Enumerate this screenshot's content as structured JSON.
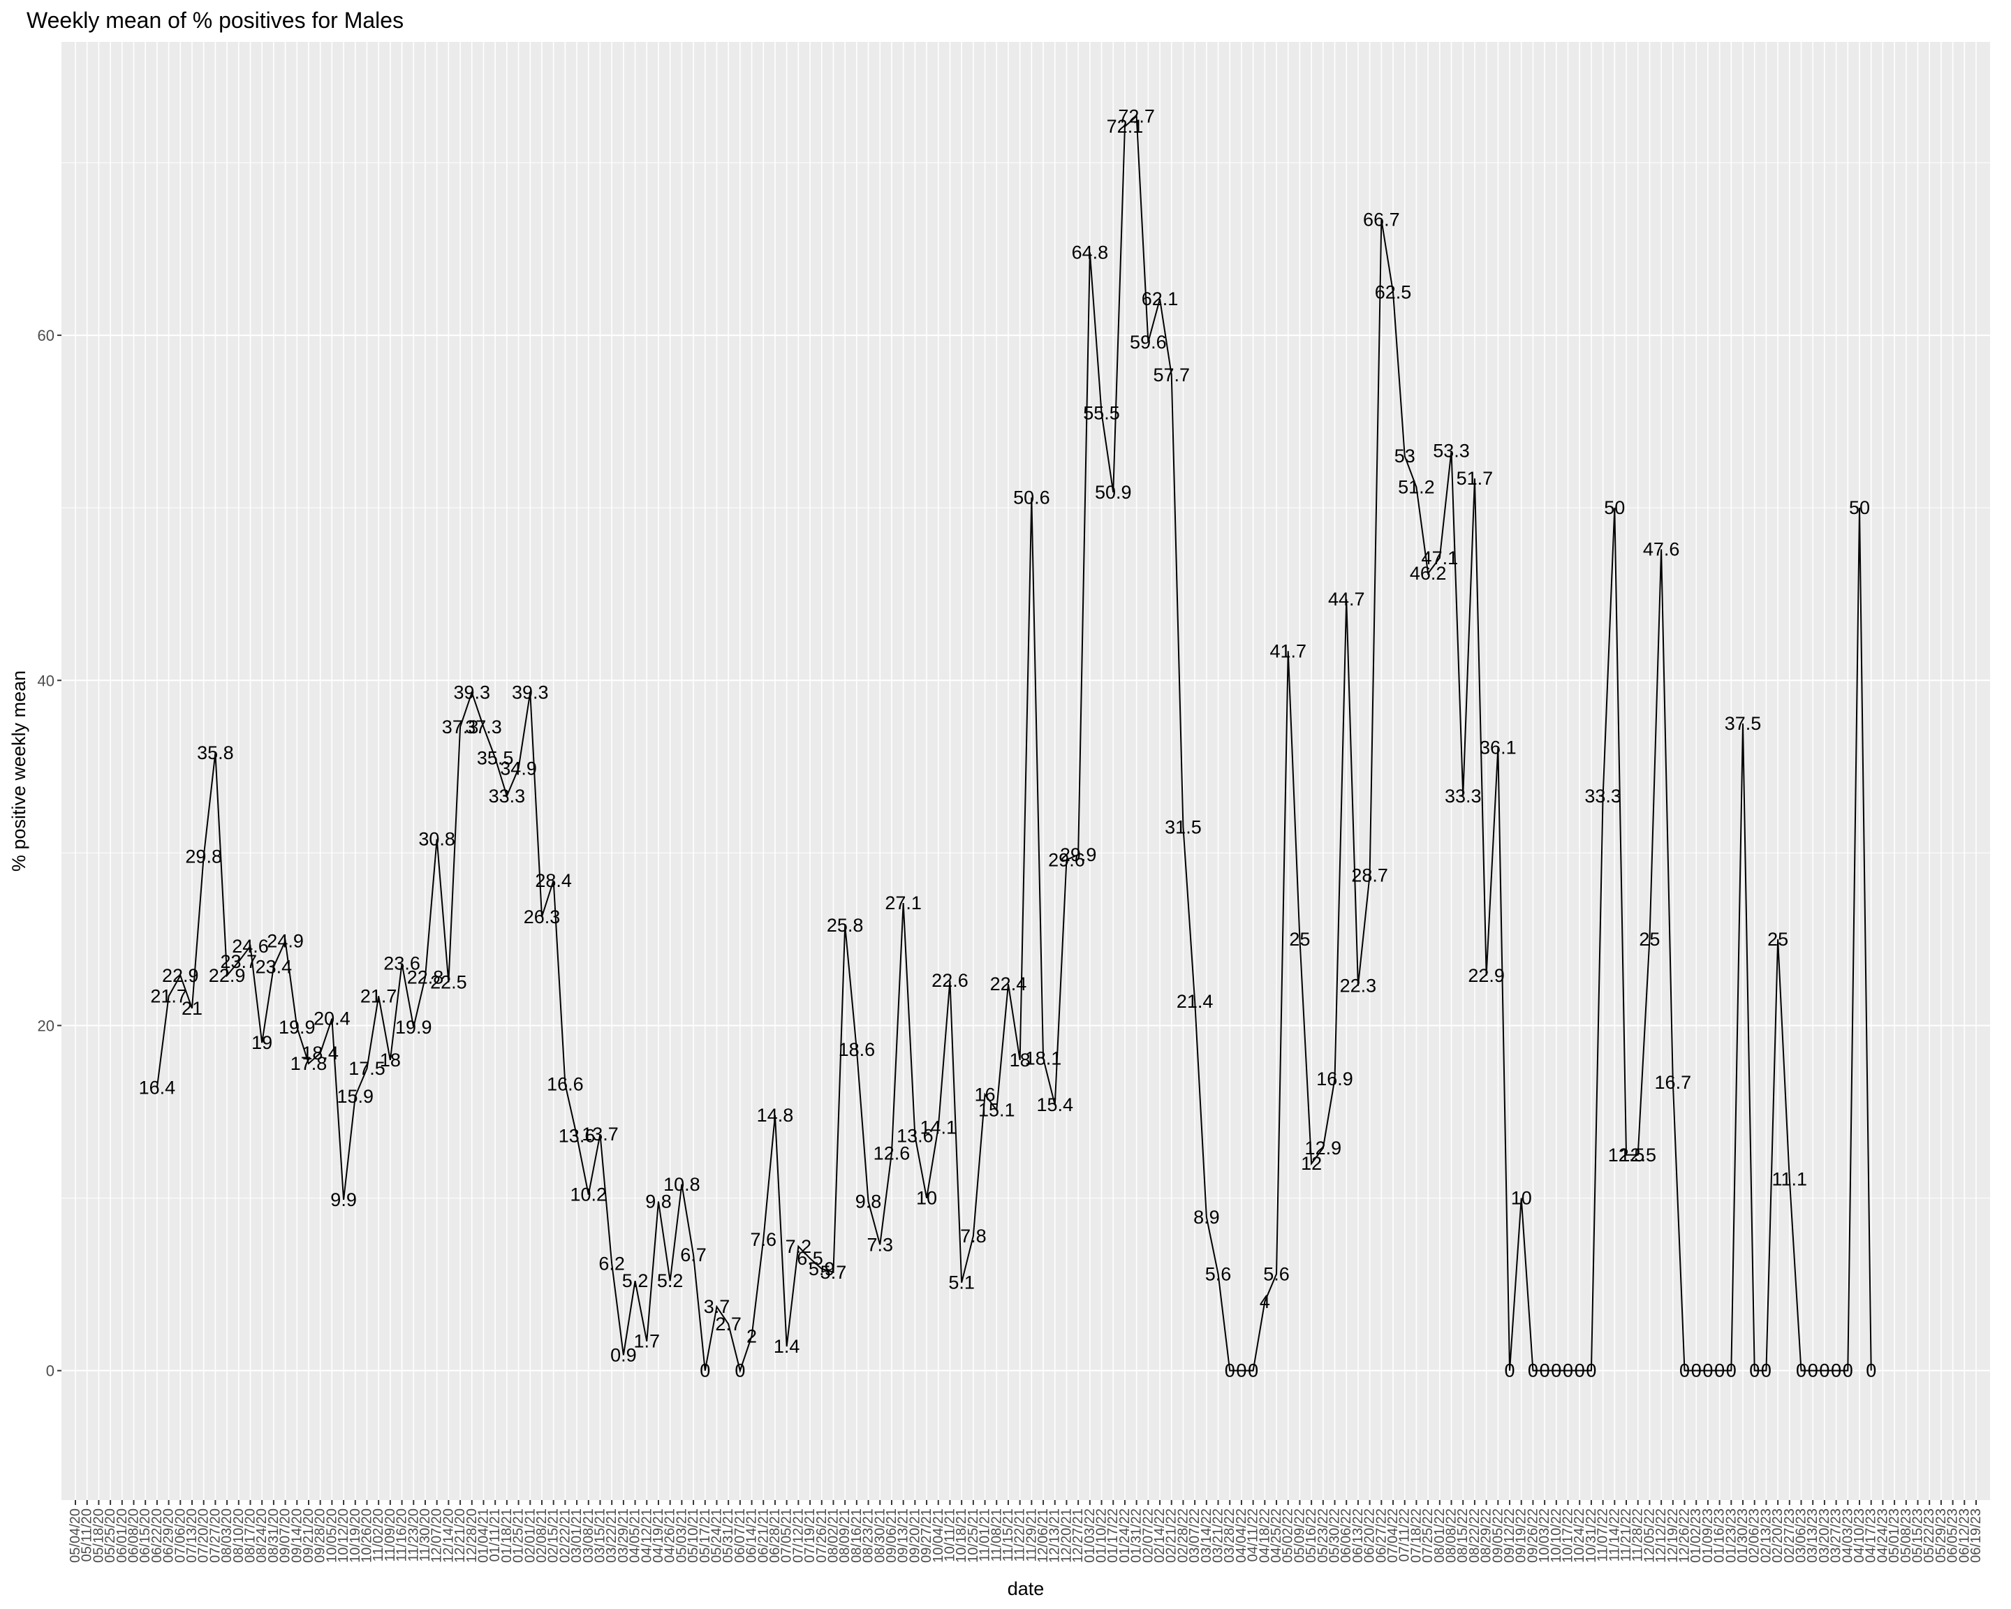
{
  "chart_data": {
    "type": "line",
    "title": "Weekly mean of % positives for Males",
    "xlabel": "date",
    "ylabel": "% positive weekly mean",
    "ylim": [
      -7.5,
      77
    ],
    "yticks": [
      0,
      20,
      40,
      60
    ],
    "grid": true,
    "x_tick_labels": [
      "05/04/20",
      "05/11/20",
      "05/18/20",
      "05/25/20",
      "06/01/20",
      "06/08/20",
      "06/15/20",
      "06/22/20",
      "06/29/20",
      "07/06/20",
      "07/13/20",
      "07/20/20",
      "07/27/20",
      "08/03/20",
      "08/10/20",
      "08/17/20",
      "08/24/20",
      "08/31/20",
      "09/07/20",
      "09/14/20",
      "09/21/20",
      "09/28/20",
      "10/05/20",
      "10/12/20",
      "10/19/20",
      "10/26/20",
      "11/02/20",
      "11/09/20",
      "11/16/20",
      "11/23/20",
      "11/30/20",
      "12/07/20",
      "12/14/20",
      "12/21/20",
      "12/28/20",
      "01/04/21",
      "01/11/21",
      "01/18/21",
      "01/25/21",
      "02/01/21",
      "02/08/21",
      "02/15/21",
      "02/22/21",
      "03/01/21",
      "03/08/21",
      "03/15/21",
      "03/22/21",
      "03/29/21",
      "04/05/21",
      "04/12/21",
      "04/19/21",
      "04/26/21",
      "05/03/21",
      "05/10/21",
      "05/17/21",
      "05/24/21",
      "05/31/21",
      "06/07/21",
      "06/14/21",
      "06/21/21",
      "06/28/21",
      "07/05/21",
      "07/12/21",
      "07/19/21",
      "07/26/21",
      "08/02/21",
      "08/09/21",
      "08/16/21",
      "08/23/21",
      "08/30/21",
      "09/06/21",
      "09/13/21",
      "09/20/21",
      "09/27/21",
      "10/04/21",
      "10/11/21",
      "10/18/21",
      "10/25/21",
      "11/01/21",
      "11/08/21",
      "11/15/21",
      "11/22/21",
      "11/29/21",
      "12/06/21",
      "12/13/21",
      "12/20/21",
      "12/27/21",
      "01/03/22",
      "01/10/22",
      "01/17/22",
      "01/24/22",
      "01/31/22",
      "02/07/22",
      "02/14/22",
      "02/21/22",
      "02/28/22",
      "03/07/22",
      "03/14/22",
      "03/21/22",
      "03/28/22",
      "04/04/22",
      "04/11/22",
      "04/18/22",
      "04/25/22",
      "05/02/22",
      "05/09/22",
      "05/16/22",
      "05/23/22",
      "05/30/22",
      "06/06/22",
      "06/13/22",
      "06/20/22",
      "06/27/22",
      "07/04/22",
      "07/11/22",
      "07/18/22",
      "07/25/22",
      "08/01/22",
      "08/08/22",
      "08/15/22",
      "08/22/22",
      "08/29/22",
      "09/05/22",
      "09/12/22",
      "09/19/22",
      "09/26/22",
      "10/03/22",
      "10/10/22",
      "10/17/22",
      "10/24/22",
      "10/31/22",
      "11/07/22",
      "11/14/22",
      "11/21/22",
      "11/28/22",
      "12/05/22",
      "12/12/22",
      "12/19/22",
      "12/26/22",
      "01/02/23",
      "01/09/23",
      "01/16/23",
      "01/23/23",
      "01/30/23",
      "02/06/23",
      "02/13/23",
      "02/20/23",
      "02/27/23",
      "03/06/23",
      "03/13/23",
      "03/20/23",
      "03/27/23",
      "04/03/23",
      "04/10/23",
      "04/17/23",
      "04/24/23",
      "05/01/23",
      "05/08/23",
      "05/15/23",
      "05/22/23",
      "05/29/23",
      "06/05/23",
      "06/12/23",
      "06/19/23"
    ],
    "series": [
      {
        "values": [
          null,
          null,
          null,
          null,
          null,
          null,
          null,
          16.4,
          21.7,
          22.9,
          21,
          29.8,
          35.8,
          22.9,
          23.7,
          24.6,
          19,
          23.4,
          24.9,
          19.9,
          17.8,
          18.4,
          20.4,
          9.9,
          15.9,
          17.5,
          21.7,
          18,
          23.6,
          19.9,
          22.8,
          30.8,
          22.5,
          37.3,
          39.3,
          37.3,
          35.5,
          33.3,
          34.9,
          39.3,
          26.3,
          28.4,
          16.6,
          13.6,
          10.2,
          13.7,
          6.2,
          0.9,
          5.2,
          1.7,
          9.8,
          5.2,
          10.8,
          6.7,
          0,
          3.7,
          2.7,
          0,
          2,
          7.6,
          14.8,
          1.4,
          7.2,
          6.5,
          5.9,
          5.7,
          25.8,
          18.6,
          9.8,
          7.3,
          12.6,
          27.1,
          13.6,
          10,
          14.1,
          22.6,
          5.1,
          7.8,
          16,
          15.1,
          22.4,
          18,
          50.6,
          18.1,
          15.4,
          29.6,
          29.9,
          64.8,
          55.5,
          50.9,
          72.1,
          72.7,
          59.6,
          62.1,
          57.7,
          31.5,
          21.4,
          8.9,
          5.6,
          0,
          0,
          0,
          4,
          5.6,
          41.7,
          25,
          12,
          12.9,
          16.9,
          44.7,
          22.3,
          28.7,
          66.7,
          62.5,
          53,
          51.2,
          46.2,
          47.1,
          53.3,
          33.3,
          51.7,
          22.9,
          36.1,
          0,
          10,
          0,
          0,
          0,
          0,
          0,
          0,
          33.3,
          50,
          12.5,
          12.5,
          25,
          47.6,
          16.7,
          0,
          0,
          0,
          0,
          0,
          37.5,
          0,
          0,
          25,
          11.1,
          0,
          0,
          0,
          0,
          0,
          50,
          0,
          null,
          null,
          null,
          null,
          null,
          null,
          null,
          null,
          null,
          null
        ],
        "point_labels": [
          null,
          null,
          null,
          null,
          null,
          null,
          null,
          "16.4",
          "21.7",
          "22.9",
          "21",
          "29.8",
          "35.8",
          "22.9",
          "23.7",
          "24.6",
          "19",
          "23.4",
          "24.9",
          "19.9",
          "17.8",
          "18.4",
          "20.4",
          "9.9",
          "15.9",
          "17.5",
          "21.7",
          "18",
          "23.6",
          "19.9",
          "22.8",
          "30.8",
          "22.5",
          "37.3",
          "39.3",
          "37.3",
          "35.5",
          "33.3",
          "34.9",
          "39.3",
          "26.3",
          "28.4",
          "16.6",
          "13.6",
          "10.2",
          "13.7",
          "6.2",
          "0.9",
          "5.2",
          "1.7",
          "9.8",
          "5.2",
          "10.8",
          "6.7",
          "0",
          "3.7",
          "2.7",
          "0",
          "2",
          "7.6",
          "14.8",
          "1.4",
          "7.2",
          "6.5",
          "5.9",
          "5.7",
          "25.8",
          "18.6",
          "9.8",
          "7.3",
          "12.6",
          "27.1",
          "13.6",
          "10",
          "14.1",
          "22.6",
          "5.1",
          "7.8",
          "16",
          "15.1",
          "22.4",
          "18",
          "50.6",
          "18.1",
          "15.4",
          "29.6",
          "29.9",
          "64.8",
          "55.5",
          "50.9",
          "72.1",
          "72.7",
          "59.6",
          "62.1",
          "57.7",
          "31.5",
          "21.4",
          "8.9",
          "5.6",
          "0",
          "0",
          "0",
          "4",
          "5.6",
          "41.7",
          "25",
          "12",
          "12.9",
          "16.9",
          "44.7",
          "22.3",
          "28.7",
          "66.7",
          "62.5",
          "53",
          "51.2",
          "46.2",
          "47.1",
          "53.3",
          "33.3",
          "51.7",
          "22.9",
          "36.1",
          "0",
          "10",
          "0",
          "0",
          "0",
          "0",
          "0",
          "0",
          "33.3",
          "50",
          "12.5",
          "12.5",
          "25",
          "47.6",
          "16.7",
          "0",
          "0",
          "0",
          "0",
          "0",
          "37.5",
          "0",
          "0",
          "25",
          "11.1",
          "0",
          "0",
          "0",
          "0",
          "0",
          "50",
          "0",
          null,
          null,
          null,
          null,
          null,
          null,
          null,
          null,
          null,
          null
        ]
      }
    ]
  }
}
